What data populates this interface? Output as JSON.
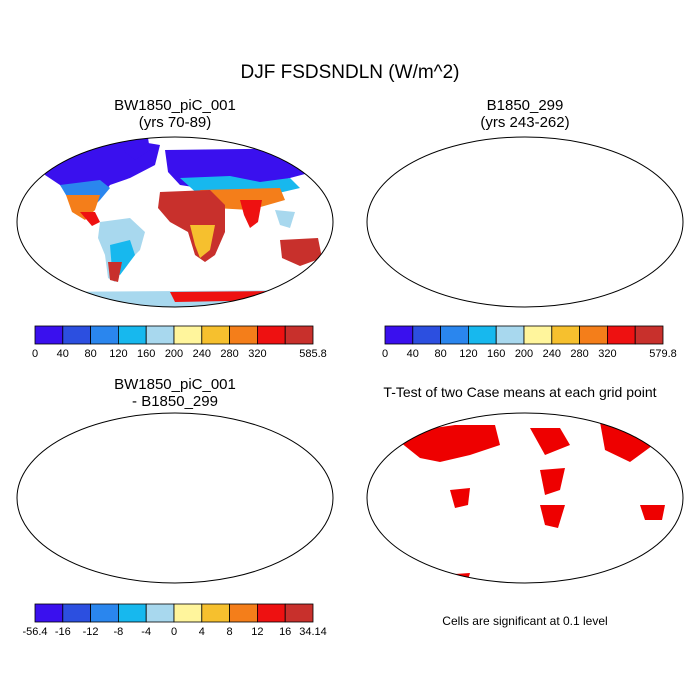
{
  "figure": {
    "title": "DJF FSDSNDLN (W/m^2)",
    "note": "Cells are significant at 0.1 level"
  },
  "chart_data": [
    {
      "type": "heatmap",
      "panel": "top-left",
      "title": "BW1850_piC_001",
      "subtitle": "(yrs 70-89)",
      "colorbar": {
        "colors": [
          "#3a10ee",
          "#2c4fe0",
          "#2a86ee",
          "#17b8ee",
          "#a8d8ee",
          "#fff59c",
          "#f6c02e",
          "#f47e1a",
          "#ee1111",
          "#c8302c"
        ],
        "tick_labels": [
          "0",
          "40",
          "80",
          "120",
          "160",
          "200",
          "240",
          "280",
          "320",
          "585.8"
        ]
      }
    },
    {
      "type": "heatmap",
      "panel": "top-right",
      "title": "B1850_299",
      "subtitle": "(yrs 243-262)",
      "colorbar": {
        "colors": [
          "#3a10ee",
          "#2c4fe0",
          "#2a86ee",
          "#17b8ee",
          "#a8d8ee",
          "#fff59c",
          "#f6c02e",
          "#f47e1a",
          "#ee1111",
          "#c8302c"
        ],
        "tick_labels": [
          "0",
          "40",
          "80",
          "120",
          "160",
          "200",
          "240",
          "280",
          "320",
          "579.8"
        ]
      }
    },
    {
      "type": "heatmap",
      "panel": "bottom-left",
      "title": "BW1850_piC_001",
      "subtitle": "- B1850_299",
      "colorbar": {
        "colors": [
          "#3a10ee",
          "#2c4fe0",
          "#2a86ee",
          "#17b8ee",
          "#a8d8ee",
          "#fff59c",
          "#f6c02e",
          "#f47e1a",
          "#ee1111",
          "#c8302c"
        ],
        "tick_labels": [
          "-56.4",
          "-16",
          "-12",
          "-8",
          "-4",
          "0",
          "4",
          "8",
          "12",
          "16",
          "34.14"
        ]
      }
    },
    {
      "type": "heatmap",
      "panel": "bottom-right",
      "title": "T-Test of two Case means at each grid point",
      "subtitle": "",
      "significance_color": "#ee0000"
    }
  ]
}
